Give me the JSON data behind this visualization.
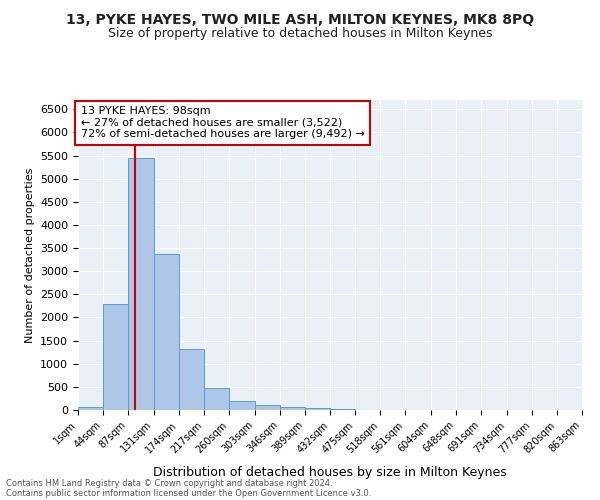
{
  "title1": "13, PYKE HAYES, TWO MILE ASH, MILTON KEYNES, MK8 8PQ",
  "title2": "Size of property relative to detached houses in Milton Keynes",
  "xlabel": "Distribution of detached houses by size in Milton Keynes",
  "ylabel": "Number of detached properties",
  "footnote1": "Contains HM Land Registry data © Crown copyright and database right 2024.",
  "footnote2": "Contains public sector information licensed under the Open Government Licence v3.0.",
  "annotation_line1": "13 PYKE HAYES: 98sqm",
  "annotation_line2": "← 27% of detached houses are smaller (3,522)",
  "annotation_line3": "72% of semi-detached houses are larger (9,492) →",
  "property_size": 98,
  "bar_edges": [
    1,
    44,
    87,
    131,
    174,
    217,
    260,
    303,
    346,
    389,
    432,
    475,
    518,
    561,
    604,
    648,
    691,
    734,
    777,
    820,
    863
  ],
  "bar_heights": [
    75,
    2300,
    5450,
    3380,
    1310,
    480,
    200,
    100,
    75,
    50,
    30,
    0,
    0,
    0,
    0,
    0,
    0,
    0,
    0,
    0
  ],
  "bar_color": "#aec6e8",
  "bar_edge_color": "#5b9bd5",
  "vline_color": "#cc0000",
  "vline_x": 98,
  "annotation_box_edge": "#cc0000",
  "ylim": [
    0,
    6700
  ],
  "background_color": "#ffffff",
  "plot_bg_color": "#eaf0f8",
  "grid_color": "#ffffff",
  "title1_fontsize": 10,
  "title2_fontsize": 9,
  "ylabel_fontsize": 8,
  "xlabel_fontsize": 9,
  "tick_fontsize": 7,
  "footnote_fontsize": 6,
  "annotation_fontsize": 8,
  "tick_labels": [
    "1sqm",
    "44sqm",
    "87sqm",
    "131sqm",
    "174sqm",
    "217sqm",
    "260sqm",
    "303sqm",
    "346sqm",
    "389sqm",
    "432sqm",
    "475sqm",
    "518sqm",
    "561sqm",
    "604sqm",
    "648sqm",
    "691sqm",
    "734sqm",
    "777sqm",
    "820sqm",
    "863sqm"
  ],
  "yticks": [
    0,
    500,
    1000,
    1500,
    2000,
    2500,
    3000,
    3500,
    4000,
    4500,
    5000,
    5500,
    6000,
    6500
  ]
}
